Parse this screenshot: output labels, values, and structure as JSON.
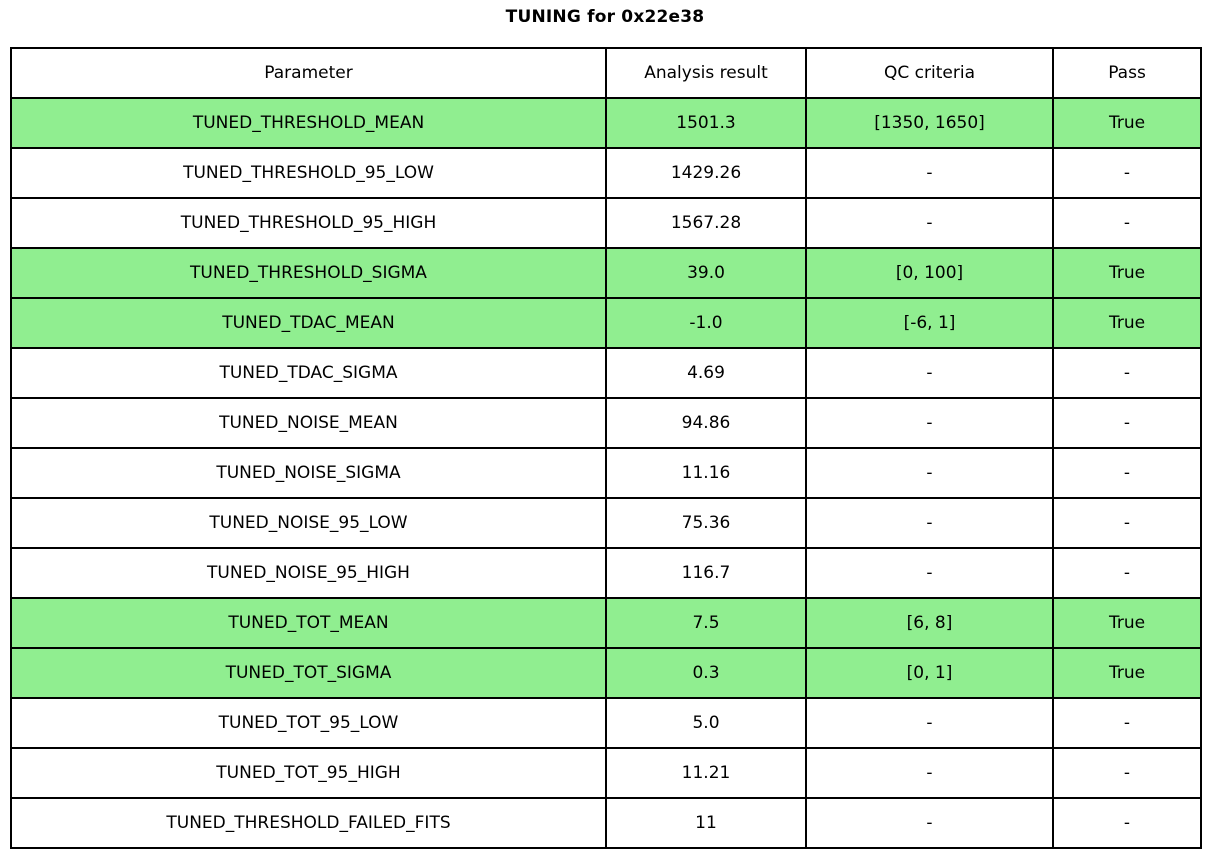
{
  "chart_data": {
    "type": "table",
    "title": "TUNING for 0x22e38",
    "columns": [
      "Parameter",
      "Analysis result",
      "QC criteria",
      "Pass"
    ],
    "rows": [
      {
        "parameter": "TUNED_THRESHOLD_MEAN",
        "analysis_result": "1501.3",
        "qc_criteria": "[1350, 1650]",
        "pass": "True",
        "highlight": true
      },
      {
        "parameter": "TUNED_THRESHOLD_95_LOW",
        "analysis_result": "1429.26",
        "qc_criteria": "-",
        "pass": "-",
        "highlight": false
      },
      {
        "parameter": "TUNED_THRESHOLD_95_HIGH",
        "analysis_result": "1567.28",
        "qc_criteria": "-",
        "pass": "-",
        "highlight": false
      },
      {
        "parameter": "TUNED_THRESHOLD_SIGMA",
        "analysis_result": "39.0",
        "qc_criteria": "[0, 100]",
        "pass": "True",
        "highlight": true
      },
      {
        "parameter": "TUNED_TDAC_MEAN",
        "analysis_result": "-1.0",
        "qc_criteria": "[-6, 1]",
        "pass": "True",
        "highlight": true
      },
      {
        "parameter": "TUNED_TDAC_SIGMA",
        "analysis_result": "4.69",
        "qc_criteria": "-",
        "pass": "-",
        "highlight": false
      },
      {
        "parameter": "TUNED_NOISE_MEAN",
        "analysis_result": "94.86",
        "qc_criteria": "-",
        "pass": "-",
        "highlight": false
      },
      {
        "parameter": "TUNED_NOISE_SIGMA",
        "analysis_result": "11.16",
        "qc_criteria": "-",
        "pass": "-",
        "highlight": false
      },
      {
        "parameter": "TUNED_NOISE_95_LOW",
        "analysis_result": "75.36",
        "qc_criteria": "-",
        "pass": "-",
        "highlight": false
      },
      {
        "parameter": "TUNED_NOISE_95_HIGH",
        "analysis_result": "116.7",
        "qc_criteria": "-",
        "pass": "-",
        "highlight": false
      },
      {
        "parameter": "TUNED_TOT_MEAN",
        "analysis_result": "7.5",
        "qc_criteria": "[6, 8]",
        "pass": "True",
        "highlight": true
      },
      {
        "parameter": "TUNED_TOT_SIGMA",
        "analysis_result": "0.3",
        "qc_criteria": "[0, 1]",
        "pass": "True",
        "highlight": true
      },
      {
        "parameter": "TUNED_TOT_95_LOW",
        "analysis_result": "5.0",
        "qc_criteria": "-",
        "pass": "-",
        "highlight": false
      },
      {
        "parameter": "TUNED_TOT_95_HIGH",
        "analysis_result": "11.21",
        "qc_criteria": "-",
        "pass": "-",
        "highlight": false
      },
      {
        "parameter": "TUNED_THRESHOLD_FAILED_FITS",
        "analysis_result": "11",
        "qc_criteria": "-",
        "pass": "-",
        "highlight": false
      }
    ],
    "colors": {
      "highlight_green": "#90EE90",
      "border": "#000000",
      "background": "#FFFFFF"
    }
  }
}
